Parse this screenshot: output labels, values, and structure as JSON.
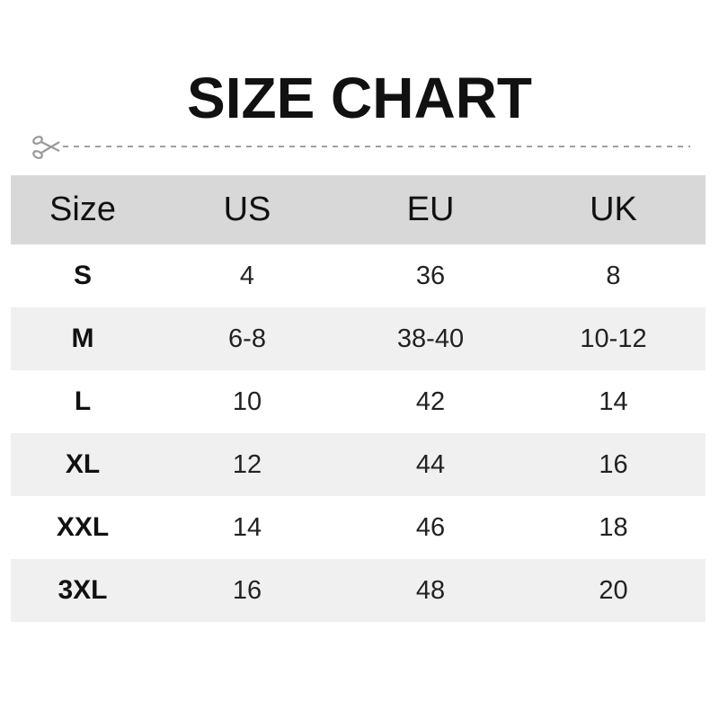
{
  "title": "SIZE CHART",
  "icons": {
    "cut": "scissors-icon"
  },
  "colors": {
    "header_bg": "#d8d8d8",
    "stripe_bg": "#f0f0f0",
    "dash": "#a0a0a0"
  },
  "table": {
    "headers": [
      "Size",
      "US",
      "EU",
      "UK"
    ],
    "rows": [
      [
        "S",
        "4",
        "36",
        "8"
      ],
      [
        "M",
        "6-8",
        "38-40",
        "10-12"
      ],
      [
        "L",
        "10",
        "42",
        "14"
      ],
      [
        "XL",
        "12",
        "44",
        "16"
      ],
      [
        "XXL",
        "14",
        "46",
        "18"
      ],
      [
        "3XL",
        "16",
        "48",
        "20"
      ]
    ]
  }
}
